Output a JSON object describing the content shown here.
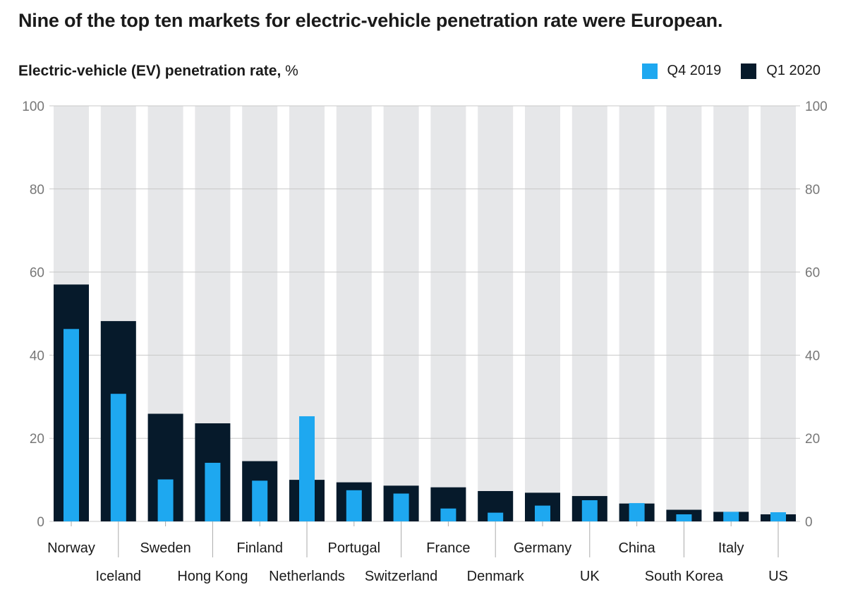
{
  "title": "Nine of the top ten markets for electric-vehicle penetration rate were European.",
  "subtitle_bold": "Electric-vehicle (EV) penetration rate,",
  "subtitle_unit": "%",
  "colors": {
    "q4_2019": "#1ea8f0",
    "q1_2020": "#061a2b",
    "background_bar": "#e6e7e9",
    "gridline": "#c8c8c8"
  },
  "chart_data": {
    "type": "bar",
    "title": "Nine of the top ten markets for electric-vehicle penetration rate were European.",
    "ylabel": "Electric-vehicle (EV) penetration rate, %",
    "ylim": [
      0,
      100
    ],
    "yticks": [
      0,
      20,
      40,
      60,
      80,
      100
    ],
    "grid": true,
    "legend": "top-right",
    "categories": [
      "Norway",
      "Iceland",
      "Sweden",
      "Hong Kong",
      "Finland",
      "Netherlands",
      "Portugal",
      "Switzerland",
      "France",
      "Denmark",
      "Germany",
      "UK",
      "China",
      "South Korea",
      "Italy",
      "US"
    ],
    "series": [
      {
        "name": "Q4 2019",
        "values": [
          46.3,
          30.7,
          10.1,
          14.1,
          9.8,
          25.3,
          7.5,
          6.7,
          3.1,
          2.1,
          3.8,
          5.1,
          4.4,
          1.7,
          2.3,
          2.2
        ]
      },
      {
        "name": "Q1 2020",
        "values": [
          57.0,
          48.2,
          25.9,
          23.6,
          14.5,
          10.0,
          9.4,
          8.6,
          8.2,
          7.3,
          6.9,
          6.1,
          4.3,
          2.8,
          2.3,
          1.7
        ]
      }
    ]
  }
}
